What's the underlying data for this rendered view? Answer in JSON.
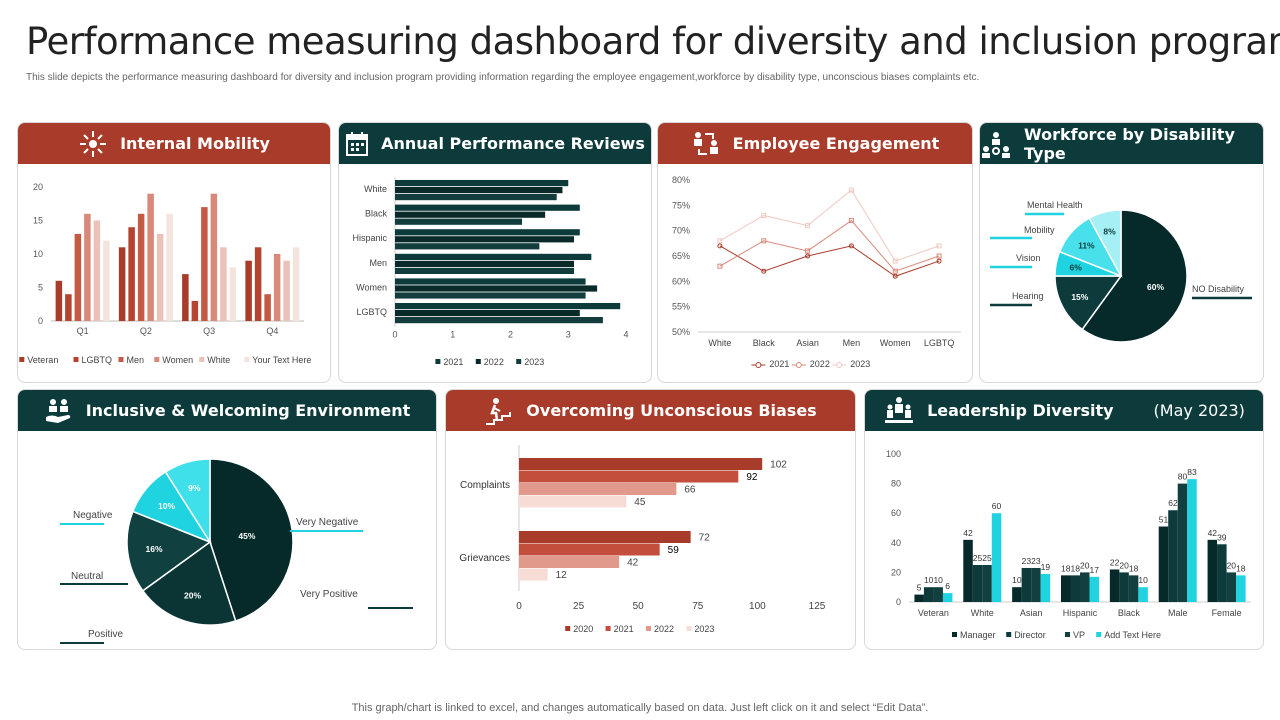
{
  "page": {
    "title": "Performance measuring dashboard for diversity and inclusion program",
    "subtitle": "This slide depicts the performance measuring dashboard for diversity and inclusion program providing information regarding the employee engagement,workforce by disability type,  unconscious biases complaints etc.",
    "footer": "This graph/chart is linked to excel,  and changes automatically based on data. Just left click on it and select “Edit Data”."
  },
  "colors": {
    "red": "#a83b2a",
    "dark": "#0d3b3b",
    "cyan": "#1fd3e0"
  },
  "cards": {
    "internal_mobility": "Internal Mobility",
    "annual_reviews": "Annual Performance Reviews",
    "engagement": "Employee Engagement",
    "disability": "Workforce by Disability Type",
    "inclusive": "Inclusive & Welcoming Environment",
    "biases": "Overcoming Unconscious Biases",
    "leadership": "Leadership Diversity",
    "leadership_extra": "(May 2023)"
  },
  "chart_data": [
    {
      "id": "internal_mobility",
      "type": "bar",
      "categories": [
        "Q1",
        "Q2",
        "Q3",
        "Q4"
      ],
      "ylim": [
        0,
        20
      ],
      "yticks": [
        0,
        5,
        10,
        15,
        20
      ],
      "series": [
        {
          "name": "Veteran",
          "color": "#a83b2a",
          "values": [
            6,
            11,
            7,
            9
          ]
        },
        {
          "name": "LGBTQ",
          "color": "#b5432f",
          "values": [
            4,
            14,
            3,
            11
          ]
        },
        {
          "name": "Men",
          "color": "#c45a44",
          "values": [
            13,
            16,
            17,
            4
          ]
        },
        {
          "name": "Women",
          "color": "#d9897a",
          "values": [
            16,
            19,
            19,
            10
          ]
        },
        {
          "name": "White",
          "color": "#ebc1b8",
          "values": [
            15,
            13,
            11,
            9
          ]
        },
        {
          "name": "Your Text Here",
          "color": "#f5e3de",
          "values": [
            12,
            16,
            8,
            11
          ]
        }
      ]
    },
    {
      "id": "annual_reviews",
      "type": "bar",
      "orientation": "horizontal",
      "categories": [
        "White",
        "Black",
        "Hispanic",
        "Men",
        "Women",
        "LGBTQ"
      ],
      "xlim": [
        0,
        4
      ],
      "xticks": [
        0,
        1,
        2,
        3,
        4
      ],
      "series": [
        {
          "name": "2021",
          "color": "#0d3b3b",
          "values": [
            3.0,
            3.2,
            3.2,
            3.4,
            3.3,
            3.9
          ]
        },
        {
          "name": "2022",
          "color": "#0a2a2a",
          "values": [
            2.9,
            2.6,
            3.1,
            3.1,
            3.5,
            3.2
          ]
        },
        {
          "name": "2023",
          "color": "#133d3d",
          "values": [
            2.8,
            2.2,
            2.5,
            3.1,
            3.3,
            3.6
          ]
        }
      ]
    },
    {
      "id": "engagement",
      "type": "line",
      "categories": [
        "White",
        "Black",
        "Asian",
        "Men",
        "Women",
        "LGBTQ"
      ],
      "ylim": [
        50,
        80
      ],
      "yticks": [
        "50%",
        "55%",
        "60%",
        "65%",
        "70%",
        "75%",
        "80%"
      ],
      "series": [
        {
          "name": "2021",
          "color": "#a83b2a",
          "values": [
            67,
            62,
            65,
            67,
            61,
            64
          ]
        },
        {
          "name": "2022",
          "color": "#d9897a",
          "values": [
            63,
            68,
            66,
            72,
            62,
            65
          ]
        },
        {
          "name": "2023",
          "color": "#f0c8c0",
          "values": [
            68,
            73,
            71,
            78,
            64,
            67
          ]
        }
      ]
    },
    {
      "id": "disability",
      "type": "pie",
      "slices": [
        {
          "name": "NO Disability",
          "value": 60,
          "label": "60%",
          "color": "#062a2a"
        },
        {
          "name": "Hearing",
          "value": 15,
          "label": "15%",
          "color": "#0d3b3b"
        },
        {
          "name": "Vision",
          "value": 6,
          "label": "6%",
          "color": "#1fd3e0"
        },
        {
          "name": "Mobility",
          "value": 11,
          "label": "11%",
          "color": "#48e0ea"
        },
        {
          "name": "Mental Health",
          "value": 8,
          "label": "8%",
          "color": "#a6eff4"
        }
      ]
    },
    {
      "id": "inclusive",
      "type": "pie",
      "slices": [
        {
          "name": "Very Positive",
          "value": 45,
          "label": "45%",
          "color": "#062a2a"
        },
        {
          "name": "Positive",
          "value": 20,
          "label": "20%",
          "color": "#0b3535"
        },
        {
          "name": "Neutral",
          "value": 16,
          "label": "16%",
          "color": "#10403f"
        },
        {
          "name": "Negative",
          "value": 10,
          "label": "10%",
          "color": "#1fd3e0"
        },
        {
          "name": "Very Negative",
          "value": 9,
          "label": "9%",
          "color": "#3fe0ea"
        }
      ]
    },
    {
      "id": "biases",
      "type": "bar",
      "orientation": "horizontal",
      "categories": [
        "Complaints",
        "Grievances"
      ],
      "category_display": [
        "Complaints",
        "Grievances"
      ],
      "xlim": [
        0,
        125
      ],
      "xticks": [
        0,
        25,
        50,
        75,
        100,
        125
      ],
      "series": [
        {
          "name": "2020",
          "color": "#a83b2a",
          "values": [
            102,
            72
          ]
        },
        {
          "name": "2021",
          "color": "#c24e3b",
          "values": [
            92,
            59
          ]
        },
        {
          "name": "2022",
          "color": "#e0998a",
          "values": [
            66,
            42
          ]
        },
        {
          "name": "2023",
          "color": "#f7dcd6",
          "values": [
            45,
            12
          ]
        }
      ]
    },
    {
      "id": "leadership",
      "type": "bar",
      "categories": [
        "Veteran",
        "White",
        "Asian",
        "Hispanic",
        "Black",
        "Male",
        "Female"
      ],
      "ylim": [
        0,
        100
      ],
      "yticks": [
        0,
        20,
        40,
        60,
        80,
        100
      ],
      "series": [
        {
          "name": "Manager",
          "color": "#062a2a",
          "values": [
            5,
            42,
            10,
            18,
            22,
            51,
            42
          ]
        },
        {
          "name": "Director",
          "color": "#0d3b3b",
          "values": [
            10,
            25,
            23,
            18,
            20,
            62,
            39
          ]
        },
        {
          "name": "VP",
          "color": "#123f3f",
          "values": [
            10,
            25,
            23,
            20,
            18,
            80,
            20
          ]
        },
        {
          "name": "Add Text Here",
          "color": "#1fd3e0",
          "values": [
            6,
            60,
            19,
            17,
            10,
            83,
            18
          ]
        }
      ]
    }
  ]
}
